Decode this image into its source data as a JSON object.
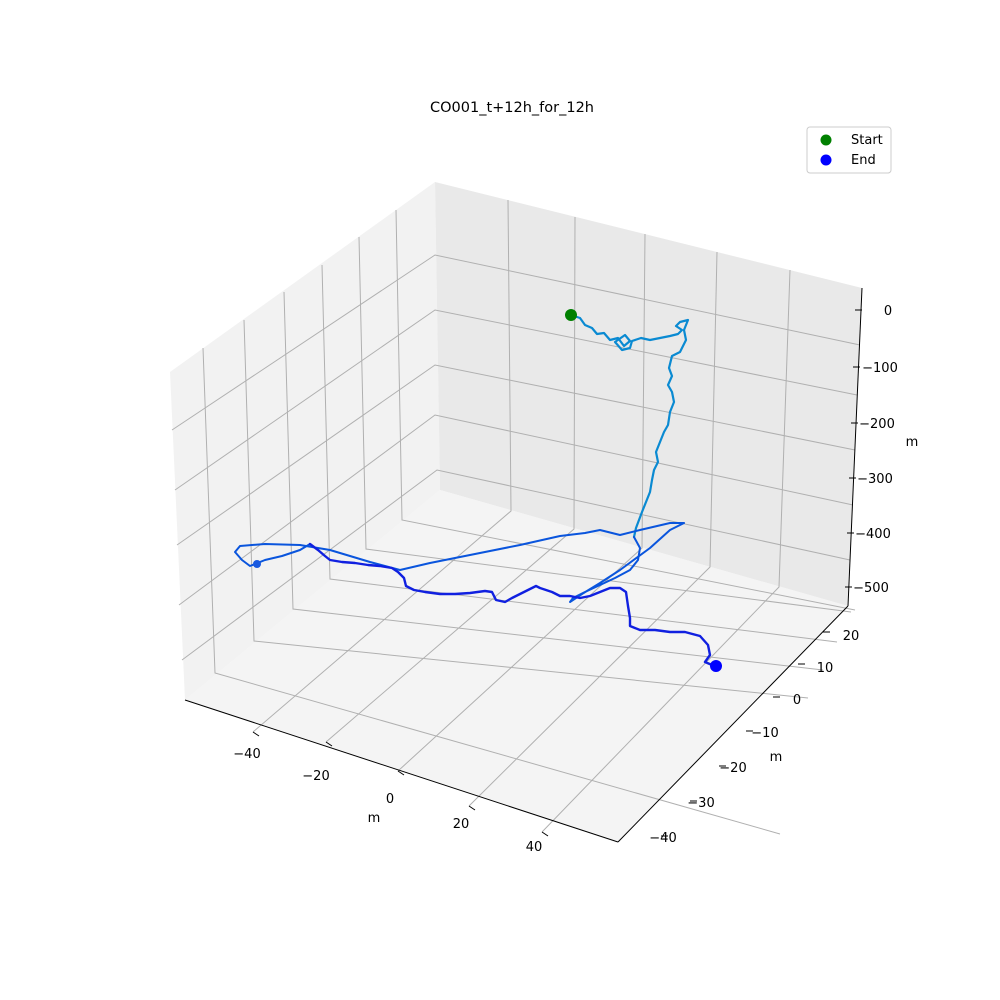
{
  "chart_data": {
    "type": "line3d",
    "title": "CO001_t+12h_for_12h",
    "x_axis": {
      "label": "m",
      "ticks": [
        "−40",
        "−20",
        "0",
        "20",
        "40"
      ]
    },
    "y_axis": {
      "label": "m",
      "ticks": [
        "20",
        "10",
        "0",
        "−10",
        "−20",
        "−30",
        "−40"
      ]
    },
    "z_axis": {
      "label": "m",
      "ticks": [
        "0",
        "−100",
        "−200",
        "−300",
        "−400",
        "−500"
      ]
    },
    "legend": {
      "position": "top-right",
      "entries": [
        {
          "label": "Start",
          "color": "#008000"
        },
        {
          "label": "End",
          "color": "#0000ff"
        }
      ]
    },
    "grid": true,
    "series": [
      {
        "color": "#0a8ad2",
        "note": "trajectory, early part (light blue)"
      },
      {
        "color": "#0a55dd",
        "note": "trajectory, middle part"
      },
      {
        "color": "#1020e0",
        "note": "trajectory, late part (dark blue)"
      }
    ]
  }
}
